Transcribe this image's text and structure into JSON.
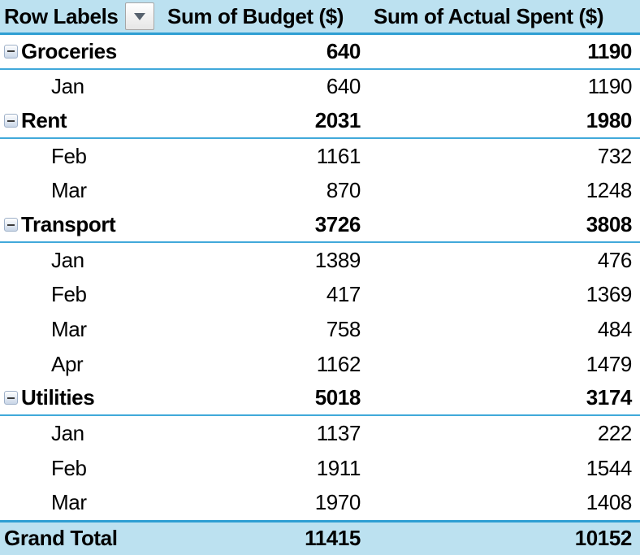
{
  "colors": {
    "header_bg": "#BCE1F0",
    "grand_total_bg": "#BCE1F0",
    "header_border_blue": "#2F9FD3",
    "group_border_blue": "#41A9DA",
    "text": "#000000"
  },
  "pivot": {
    "headers": {
      "row_labels": "Row Labels",
      "budget": "Sum of Budget ($)",
      "actual": "Sum of Actual Spent ($)"
    },
    "rows": [
      {
        "type": "group",
        "label": "Groceries",
        "budget": "640",
        "actual": "1190"
      },
      {
        "type": "item",
        "label": "Jan",
        "budget": "640",
        "actual": "1190"
      },
      {
        "type": "group",
        "label": "Rent",
        "budget": "2031",
        "actual": "1980"
      },
      {
        "type": "item",
        "label": "Feb",
        "budget": "1161",
        "actual": "732"
      },
      {
        "type": "item",
        "label": "Mar",
        "budget": "870",
        "actual": "1248"
      },
      {
        "type": "group",
        "label": "Transport",
        "budget": "3726",
        "actual": "3808"
      },
      {
        "type": "item",
        "label": "Jan",
        "budget": "1389",
        "actual": "476"
      },
      {
        "type": "item",
        "label": "Feb",
        "budget": "417",
        "actual": "1369"
      },
      {
        "type": "item",
        "label": "Mar",
        "budget": "758",
        "actual": "484"
      },
      {
        "type": "item",
        "label": "Apr",
        "budget": "1162",
        "actual": "1479"
      },
      {
        "type": "group",
        "label": "Utilities",
        "budget": "5018",
        "actual": "3174"
      },
      {
        "type": "item",
        "label": "Jan",
        "budget": "1137",
        "actual": "222"
      },
      {
        "type": "item",
        "label": "Feb",
        "budget": "1911",
        "actual": "1544"
      },
      {
        "type": "item",
        "label": "Mar",
        "budget": "1970",
        "actual": "1408"
      },
      {
        "type": "total",
        "label": "Grand Total",
        "budget": "11415",
        "actual": "10152"
      }
    ]
  }
}
